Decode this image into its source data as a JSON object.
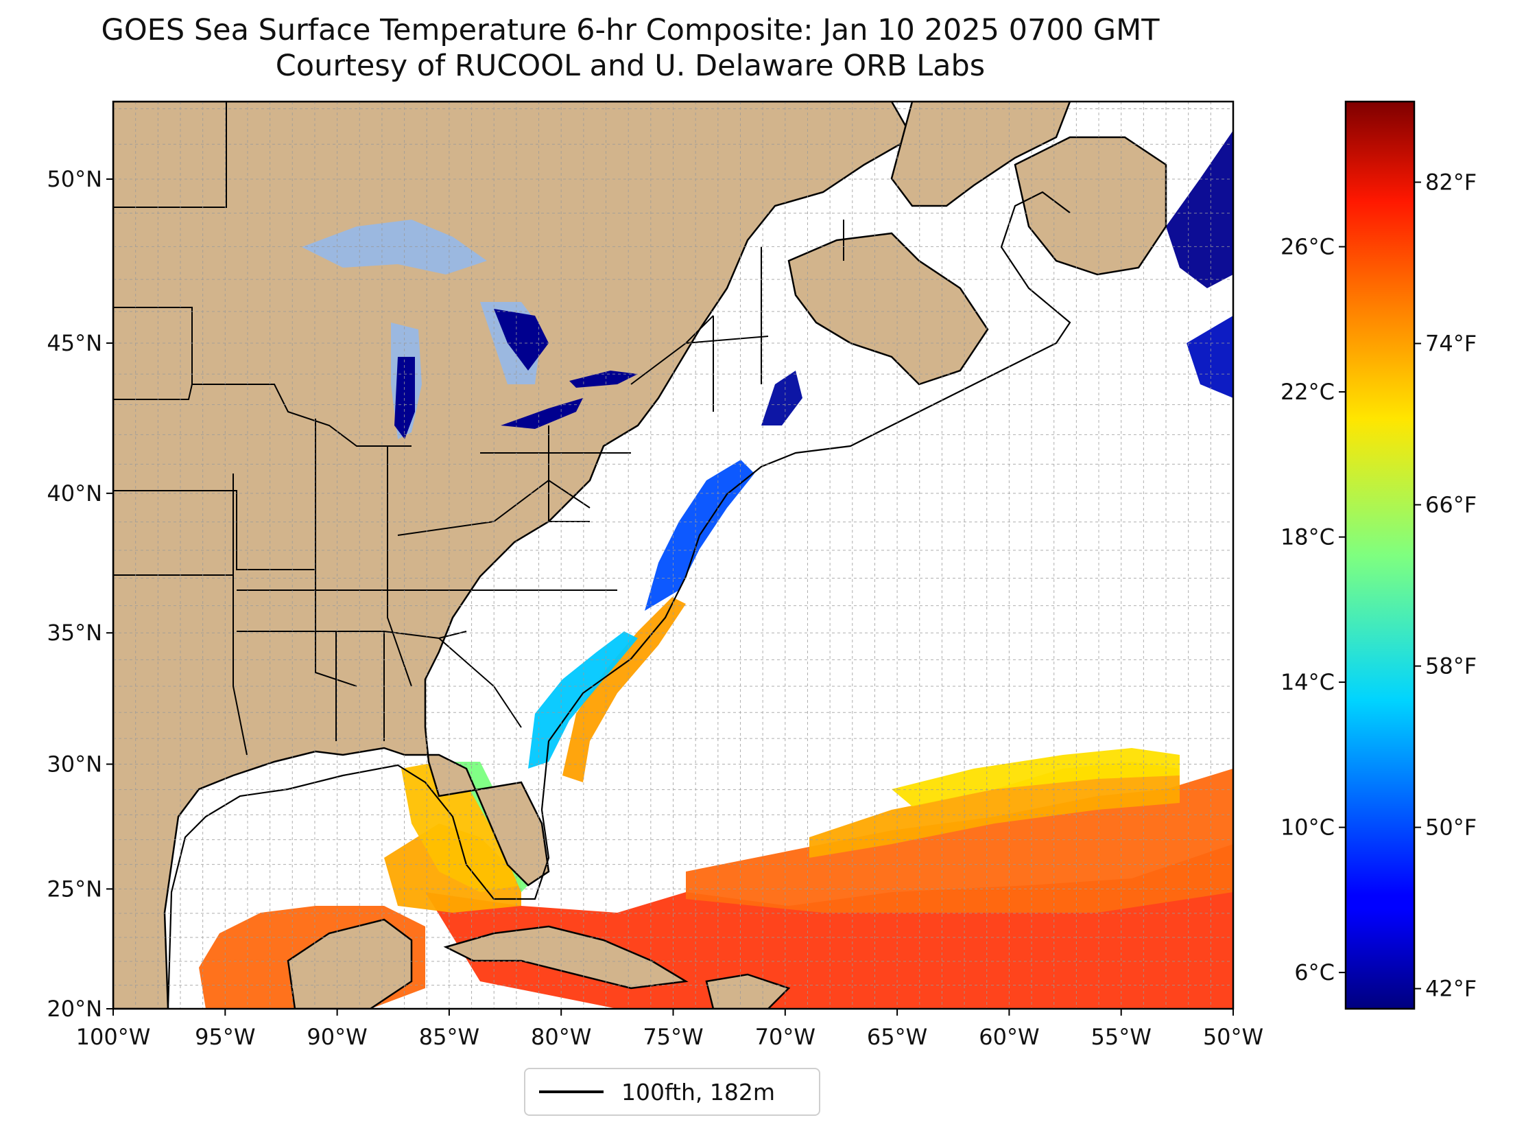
{
  "title": "GOES Sea Surface Temperature 6-hr Composite: Jan 10 2025 0700 GMT",
  "subtitle": "Courtesy of RUCOOL and U. Delaware ORB Labs",
  "map": {
    "extent": {
      "lon_min": -100,
      "lon_max": -50,
      "lat_min": 20,
      "lat_max": 52.2
    },
    "lat_ticks": [
      {
        "value": 20,
        "label": "20°N"
      },
      {
        "value": 25,
        "label": "25°N"
      },
      {
        "value": 30,
        "label": "30°N"
      },
      {
        "value": 35,
        "label": "35°N"
      },
      {
        "value": 40,
        "label": "40°N"
      },
      {
        "value": 45,
        "label": "45°N"
      },
      {
        "value": 50,
        "label": "50°N"
      }
    ],
    "lon_ticks": [
      {
        "value": -100,
        "label": "100°W"
      },
      {
        "value": -95,
        "label": "95°W"
      },
      {
        "value": -90,
        "label": "90°W"
      },
      {
        "value": -85,
        "label": "85°W"
      },
      {
        "value": -80,
        "label": "80°W"
      },
      {
        "value": -75,
        "label": "75°W"
      },
      {
        "value": -70,
        "label": "70°W"
      },
      {
        "value": -65,
        "label": "65°W"
      },
      {
        "value": -60,
        "label": "60°W"
      },
      {
        "value": -55,
        "label": "55°W"
      },
      {
        "value": -50,
        "label": "50°W"
      }
    ],
    "gridlines": true,
    "land_color": "#d2b48c",
    "lake_color": "#9bb8e0",
    "ocean_color": "#ffffff"
  },
  "colorbar": {
    "colormap": "jet",
    "range_c": [
      5,
      30
    ],
    "celsius_ticks": [
      {
        "value": 6,
        "label": "6°C"
      },
      {
        "value": 10,
        "label": "10°C"
      },
      {
        "value": 14,
        "label": "14°C"
      },
      {
        "value": 18,
        "label": "18°C"
      },
      {
        "value": 22,
        "label": "22°C"
      },
      {
        "value": 26,
        "label": "26°C"
      }
    ],
    "fahrenheit_ticks": [
      {
        "value": 42,
        "label": "42°F"
      },
      {
        "value": 50,
        "label": "50°F"
      },
      {
        "value": 58,
        "label": "58°F"
      },
      {
        "value": 66,
        "label": "66°F"
      },
      {
        "value": 74,
        "label": "74°F"
      },
      {
        "value": 82,
        "label": "82°F"
      }
    ]
  },
  "legend": {
    "label": "100fth, 182m",
    "line_color": "#000000"
  }
}
